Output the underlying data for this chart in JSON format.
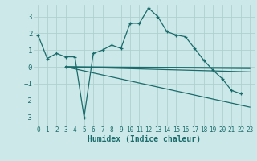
{
  "background_color": "#cde8e8",
  "grid_color": "#b0d0d0",
  "line_color": "#1a6b6b",
  "x_label": "Humidex (Indice chaleur)",
  "xlim": [
    -0.5,
    23.5
  ],
  "ylim": [
    -3.5,
    3.7
  ],
  "yticks": [
    -3,
    -2,
    -1,
    0,
    1,
    2,
    3
  ],
  "xticks": [
    0,
    1,
    2,
    3,
    4,
    5,
    6,
    7,
    8,
    9,
    10,
    11,
    12,
    13,
    14,
    15,
    16,
    17,
    18,
    19,
    20,
    21,
    22,
    23
  ],
  "series1_x": [
    0,
    1,
    2,
    3,
    4,
    5,
    6,
    7,
    8,
    9,
    10,
    11,
    12,
    13,
    14,
    15,
    16,
    17,
    18,
    19,
    20,
    21,
    22
  ],
  "series1_y": [
    1.9,
    0.5,
    0.8,
    0.6,
    0.6,
    -3.0,
    0.8,
    1.0,
    1.3,
    1.1,
    2.6,
    2.6,
    3.5,
    3.0,
    2.1,
    1.9,
    1.8,
    1.1,
    0.4,
    -0.2,
    -0.7,
    -1.4,
    -1.6
  ],
  "line2_x": [
    3,
    23
  ],
  "line2_y": [
    0.0,
    -0.1
  ],
  "line3_x": [
    3,
    23
  ],
  "line3_y": [
    0.0,
    -0.3
  ],
  "line4_x": [
    3,
    23
  ],
  "line4_y": [
    0.0,
    -0.05
  ],
  "line5_x": [
    3,
    23
  ],
  "line5_y": [
    0.0,
    -2.4
  ]
}
